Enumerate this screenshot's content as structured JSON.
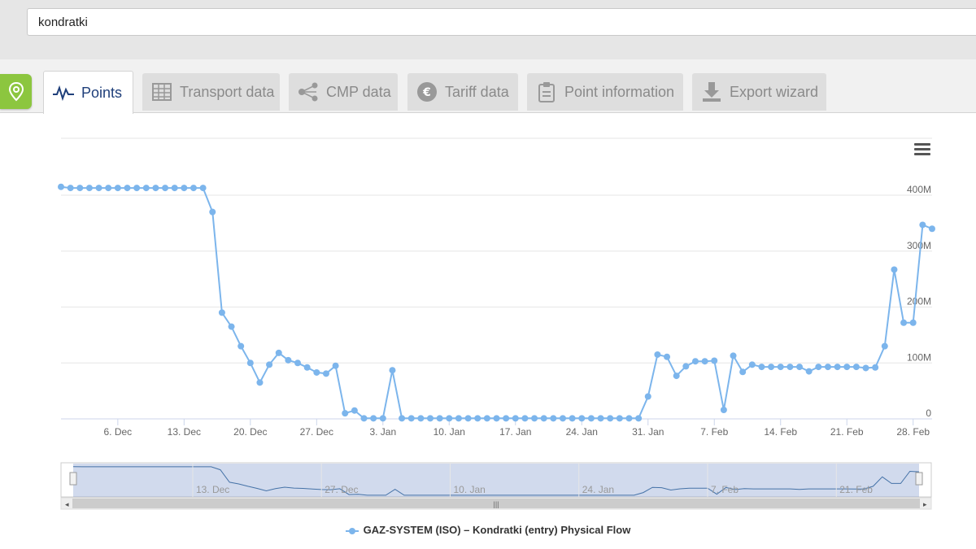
{
  "search": {
    "value": "kondratki"
  },
  "tabs": [
    {
      "label": "Points",
      "icon": "pulse-icon",
      "active": true
    },
    {
      "label": "Transport data",
      "icon": "table-icon",
      "active": false
    },
    {
      "label": "CMP data",
      "icon": "share-icon",
      "active": false
    },
    {
      "label": "Tariff data",
      "icon": "euro-icon",
      "active": false
    },
    {
      "label": "Point information",
      "icon": "clipboard-icon",
      "active": false
    },
    {
      "label": "Export wizard",
      "icon": "download-icon",
      "active": false
    }
  ],
  "colors": {
    "series": "#7cb5ec",
    "accent": "#8cc63f",
    "active_tab_text": "#1f3f7a"
  },
  "chart_data": {
    "type": "line",
    "start_date": "2016-11-30",
    "x_tick_labels": [
      "6. Dec",
      "13. Dec",
      "20. Dec",
      "27. Dec",
      "3. Jan",
      "10. Jan",
      "17. Jan",
      "24. Jan",
      "31. Jan",
      "7. Feb",
      "14. Feb",
      "21. Feb",
      "28. Feb"
    ],
    "y_tick_labels": [
      "0",
      "100M",
      "200M",
      "300M",
      "400M"
    ],
    "ylim": [
      0,
      400000000
    ],
    "grid": true,
    "legend_position": "bottom",
    "series": [
      {
        "name": "GAZ-SYSTEM (ISO) – Kondratki (entry) Physical Flow",
        "values": [
          415,
          413,
          413,
          413,
          413,
          413,
          413,
          413,
          413,
          413,
          413,
          413,
          413,
          413,
          413,
          413,
          370,
          190,
          165,
          130,
          100,
          65,
          97,
          118,
          105,
          100,
          92,
          83,
          81,
          95,
          10,
          15,
          1,
          1,
          1,
          87,
          1,
          1,
          1,
          1,
          1,
          1,
          1,
          1,
          1,
          1,
          1,
          1,
          1,
          1,
          1,
          1,
          1,
          1,
          1,
          1,
          1,
          1,
          1,
          1,
          1,
          1,
          40,
          115,
          111,
          77,
          94,
          103,
          103,
          104,
          16,
          113,
          84,
          97,
          93,
          93,
          93,
          93,
          93,
          85,
          93,
          93,
          93,
          93,
          93,
          91,
          92,
          130,
          267,
          172,
          172,
          347,
          340
        ]
      }
    ],
    "navigator": {
      "labels": [
        "13. Dec",
        "27. Dec",
        "10. Jan",
        "24. Jan",
        "7. Feb",
        "21. Feb"
      ]
    }
  }
}
